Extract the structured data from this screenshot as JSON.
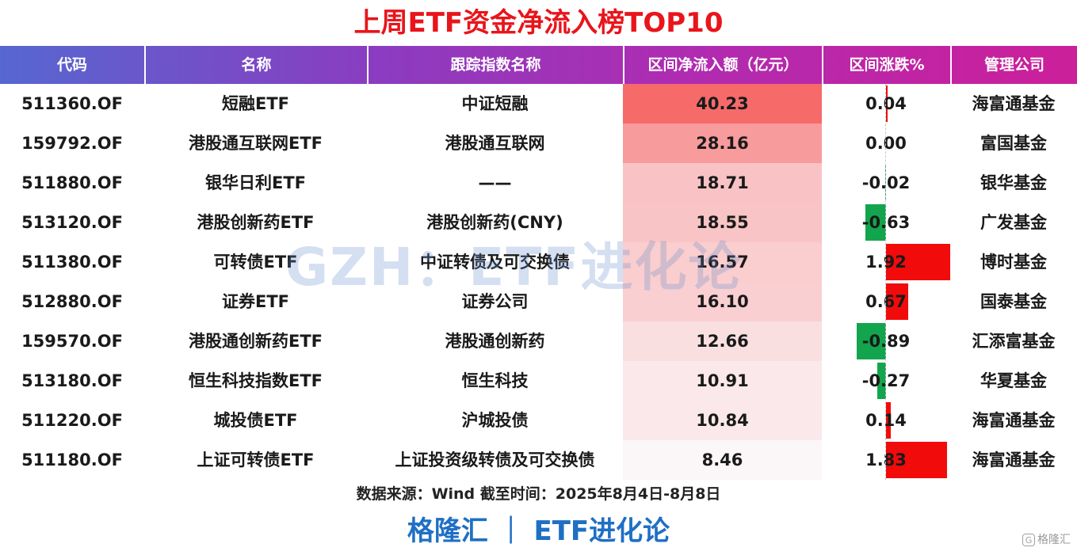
{
  "title": "上周ETF资金净流入榜TOP10",
  "watermark": "GZH：ETF进化论",
  "source": "数据来源：Wind 截至时间：2025年8月4日-8月8日",
  "brand": "格隆汇 ｜ ETF进化论",
  "corner_logo": {
    "icon": "gelonghui-logo-icon",
    "symbol": "G",
    "text": "格隆汇"
  },
  "colors": {
    "title": "#e8151b",
    "flow_max": "#f66a6a",
    "positive_bar": "#f10b0b",
    "negative_bar": "#12a54d",
    "brand": "#1f6fc4"
  },
  "chart_data": {
    "type": "table",
    "columns": [
      "代码",
      "名称",
      "跟踪指数名称",
      "区间净流入额（亿元）",
      "区间涨跌%",
      "管理公司"
    ],
    "rows": [
      {
        "code": "511360.OF",
        "name": "短融ETF",
        "index": "中证短融",
        "net_inflow": "40.23",
        "change": "0.04",
        "company": "海富通基金"
      },
      {
        "code": "159792.OF",
        "name": "港股通互联网ETF",
        "index": "港股通互联网",
        "net_inflow": "28.16",
        "change": "0.00",
        "company": "富国基金"
      },
      {
        "code": "511880.OF",
        "name": "银华日利ETF",
        "index": "——",
        "net_inflow": "18.71",
        "change": "-0.02",
        "company": "银华基金"
      },
      {
        "code": "513120.OF",
        "name": "港股创新药ETF",
        "index": "港股创新药(CNY)",
        "net_inflow": "18.55",
        "change": "-0.63",
        "company": "广发基金"
      },
      {
        "code": "511380.OF",
        "name": "可转债ETF",
        "index": "中证转债及可交换债",
        "net_inflow": "16.57",
        "change": "1.92",
        "company": "博时基金"
      },
      {
        "code": "512880.OF",
        "name": "证券ETF",
        "index": "证券公司",
        "net_inflow": "16.10",
        "change": "0.67",
        "company": "国泰基金"
      },
      {
        "code": "159570.OF",
        "name": "港股通创新药ETF",
        "index": "港股通创新药",
        "net_inflow": "12.66",
        "change": "-0.89",
        "company": "汇添富基金"
      },
      {
        "code": "513180.OF",
        "name": "恒生科技指数ETF",
        "index": "恒生科技",
        "net_inflow": "10.91",
        "change": "-0.27",
        "company": "华夏基金"
      },
      {
        "code": "511220.OF",
        "name": "城投债ETF",
        "index": "沪城投债",
        "net_inflow": "10.84",
        "change": "0.14",
        "company": "海富通基金"
      },
      {
        "code": "511180.OF",
        "name": "上证可转债ETF",
        "index": "上证投资级转债及可交换债",
        "net_inflow": "8.46",
        "change": "1.83",
        "company": "海富通基金"
      }
    ]
  }
}
